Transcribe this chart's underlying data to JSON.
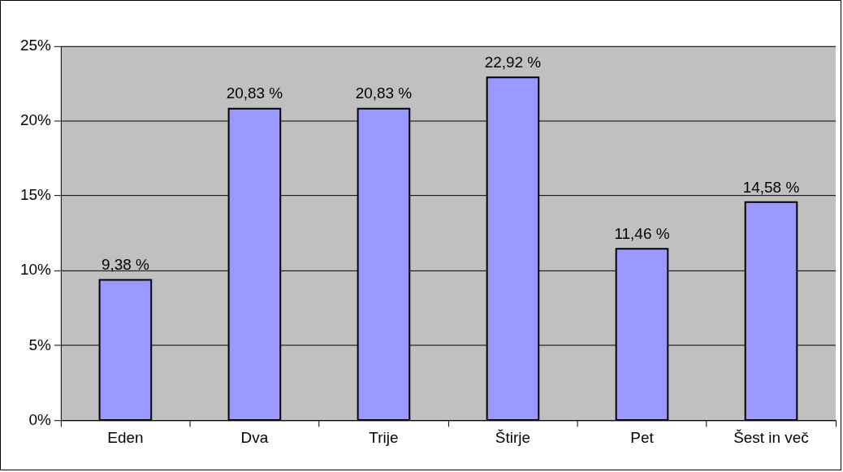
{
  "chart_data": {
    "type": "bar",
    "categories": [
      "Eden",
      "Dva",
      "Trije",
      "Štirje",
      "Pet",
      "Šest in več"
    ],
    "values": [
      9.38,
      20.83,
      20.83,
      22.92,
      11.46,
      14.58
    ],
    "value_labels": [
      "9,38 %",
      "20,83 %",
      "20,83 %",
      "22,92 %",
      "11,46 %",
      "14,58 %"
    ],
    "color": "#9999ff",
    "ylim": [
      0,
      25
    ],
    "yticks": [
      {
        "value": 0,
        "label": "0%"
      },
      {
        "value": 5,
        "label": "5%"
      },
      {
        "value": 10,
        "label": "10%"
      },
      {
        "value": 15,
        "label": "15%"
      },
      {
        "value": 20,
        "label": "20%"
      },
      {
        "value": 25,
        "label": "25%"
      }
    ],
    "grid": "y",
    "legend": false
  }
}
